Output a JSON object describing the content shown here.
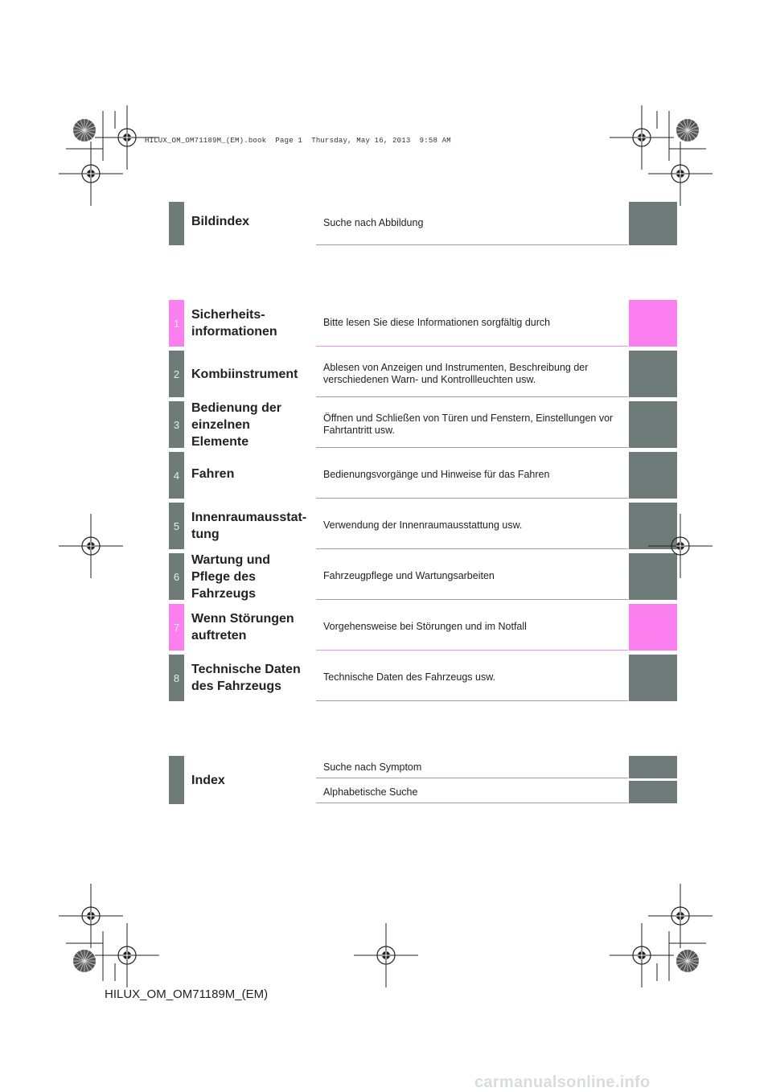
{
  "print_header": "HILUX_OM_OM71189M_(EM).book  Page 1  Thursday, May 16, 2013  9:58 AM",
  "bildindex": {
    "title": "Bildindex",
    "desc": "Suche nach Abbildung"
  },
  "sections": [
    {
      "num": "1",
      "title": "Sicherheits-\ninformationen",
      "desc": "Bitte lesen Sie diese Informationen sorgfältig durch",
      "color": "pink"
    },
    {
      "num": "2",
      "title": "Kombiinstrument",
      "desc": "Ablesen von Anzeigen und Instrumenten, Beschreibung der verschiedenen Warn- und Kontrollleuchten usw.",
      "color": "gray"
    },
    {
      "num": "3",
      "title": "Bedienung der einzelnen Elemente",
      "desc": "Öffnen und Schließen von Türen und Fenstern, Einstellungen vor Fahrtantritt usw.",
      "color": "gray"
    },
    {
      "num": "4",
      "title": "Fahren",
      "desc": "Bedienungsvorgänge und Hinweise für das Fahren",
      "color": "gray"
    },
    {
      "num": "5",
      "title": "Innenraumausstat-\ntung",
      "desc": "Verwendung der Innenraumausstattung usw.",
      "color": "gray"
    },
    {
      "num": "6",
      "title": "Wartung und Pflege des Fahrzeugs",
      "desc": "Fahrzeugpflege und Wartungsarbeiten",
      "color": "gray"
    },
    {
      "num": "7",
      "title": "Wenn Störungen auftreten",
      "desc": "Vorgehensweise bei Störungen und im Notfall",
      "color": "pink"
    },
    {
      "num": "8",
      "title": "Technische Daten des Fahrzeugs",
      "desc": "Technische Daten des Fahrzeugs usw.",
      "color": "gray"
    }
  ],
  "index": {
    "title": "Index",
    "items": [
      "Suche nach Symptom",
      "Alphabetische Suche"
    ]
  },
  "footer_code": "HILUX_OM_OM71189M_(EM)",
  "watermark": "carmanualsonline.info",
  "colors": {
    "tab_gray": "#6e7b79",
    "tab_pink": "#fb7fef"
  }
}
